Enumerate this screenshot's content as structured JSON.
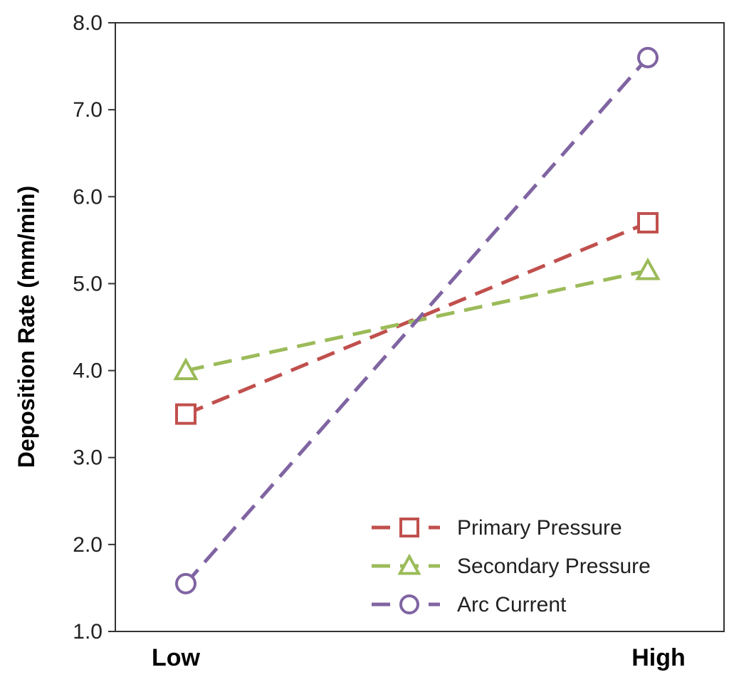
{
  "chart_data": {
    "type": "line",
    "title": "",
    "xlabel": "",
    "ylabel": "Deposition Rate (mm/min)",
    "categories": [
      "Low",
      "High"
    ],
    "ylim": [
      1.0,
      8.0
    ],
    "yticks": [
      "1.0",
      "2.0",
      "3.0",
      "4.0",
      "5.0",
      "6.0",
      "7.0",
      "8.0"
    ],
    "grid": false,
    "legend_position": "bottom-right",
    "series": [
      {
        "name": "Primary Pressure",
        "values": [
          3.5,
          5.7
        ],
        "color": "#c0504d",
        "marker": "square",
        "dash": "dashed"
      },
      {
        "name": "Secondary Pressure",
        "values": [
          4.0,
          5.15
        ],
        "color": "#9bbb59",
        "marker": "triangle",
        "dash": "dashed"
      },
      {
        "name": "Arc Current",
        "values": [
          1.55,
          7.6
        ],
        "color": "#8064a2",
        "marker": "circle",
        "dash": "dashed"
      }
    ]
  }
}
